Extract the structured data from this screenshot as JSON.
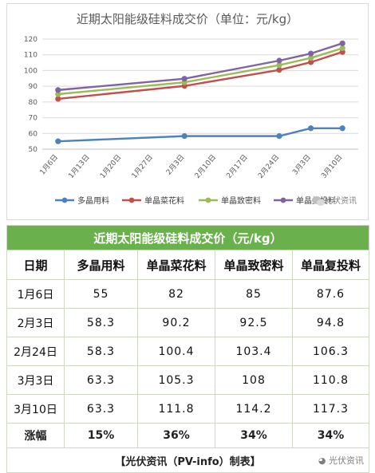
{
  "chart_data": {
    "type": "line",
    "title": "近期太阳能级硅料成交价（单位：元/kg）",
    "ylim": [
      50,
      120
    ],
    "yticks": [
      50,
      60,
      70,
      80,
      90,
      100,
      110,
      120
    ],
    "tick_labels": [
      "1月6日",
      "1月13日",
      "1月20日",
      "1月27日",
      "2月3日",
      "2月10日",
      "2月17日",
      "2月24日",
      "3月3日",
      "3月10日"
    ],
    "x_points": [
      "1月6日",
      "2月3日",
      "2月24日",
      "3月3日",
      "3月10日"
    ],
    "grid": true,
    "legend_position": "bottom",
    "series": [
      {
        "name": "多晶用料",
        "color": "#4f81bd",
        "values": [
          55,
          58.3,
          58.3,
          63.3,
          63.3
        ]
      },
      {
        "name": "单晶菜花料",
        "color": "#c0504d",
        "values": [
          82,
          90.2,
          100.4,
          105.3,
          111.8
        ]
      },
      {
        "name": "单晶致密料",
        "color": "#9bbb59",
        "values": [
          85,
          92.5,
          103.4,
          108,
          114.2
        ]
      },
      {
        "name": "单晶复投料",
        "color": "#8064a2",
        "values": [
          87.6,
          94.8,
          106.3,
          110.8,
          117.3
        ]
      }
    ]
  },
  "watermark": {
    "icon": "wechat-icon",
    "text": "光伏资讯"
  },
  "table": {
    "title": "近期太阳能级硅料成交价（元/kg）",
    "headers": [
      "日期",
      "多晶用料",
      "单晶菜花料",
      "单晶致密料",
      "单晶复投料"
    ],
    "rows": [
      [
        "1月6日",
        "55",
        "82",
        "85",
        "87.6"
      ],
      [
        "2月3日",
        "58.3",
        "90.2",
        "92.5",
        "94.8"
      ],
      [
        "2月24日",
        "58.3",
        "100.4",
        "103.4",
        "106.3"
      ],
      [
        "3月3日",
        "63.3",
        "105.3",
        "108",
        "110.8"
      ],
      [
        "3月10日",
        "63.3",
        "111.8",
        "114.2",
        "117.3"
      ]
    ],
    "change_row": [
      "涨幅",
      "15%",
      "36%",
      "34%",
      "34%"
    ],
    "footer": "【光伏资讯（PV-info）制表】",
    "title_bg": "#6ab04c"
  }
}
